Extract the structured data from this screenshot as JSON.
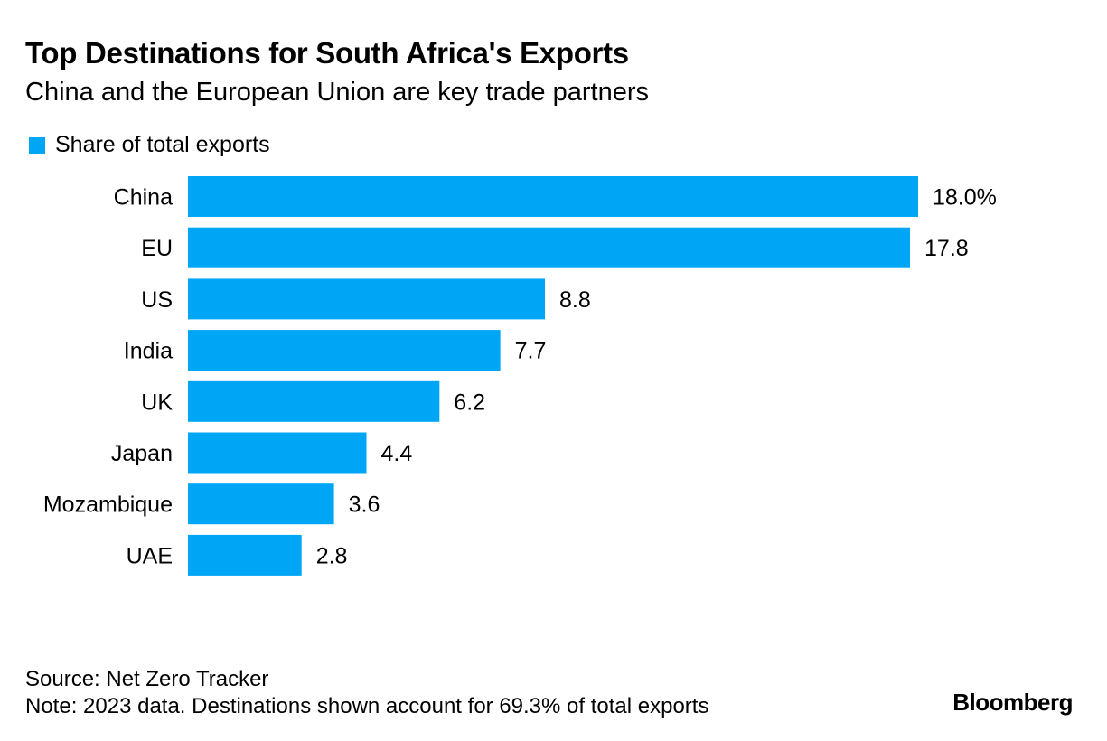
{
  "header": {
    "title": "Top Destinations for South Africa's Exports",
    "subtitle": "China and the European Union are key trade partners"
  },
  "legend": {
    "label": "Share of total exports",
    "color": "#00A6F6"
  },
  "chart_data": {
    "type": "bar",
    "orientation": "horizontal",
    "title": "Top Destinations for South Africa's Exports",
    "subtitle": "China and the European Union are key trade partners",
    "xlabel": "",
    "ylabel": "",
    "categories": [
      "China",
      "EU",
      "US",
      "India",
      "UK",
      "Japan",
      "Mozambique",
      "UAE"
    ],
    "series": [
      {
        "name": "Share of total exports",
        "values": [
          18.0,
          17.8,
          8.8,
          7.7,
          6.2,
          4.4,
          3.6,
          2.8
        ]
      }
    ],
    "data_labels": [
      "18.0%",
      "17.8",
      "8.8",
      "7.7",
      "6.2",
      "4.4",
      "3.6",
      "2.8"
    ],
    "xlim": [
      0,
      18.0
    ],
    "grid": false,
    "legend_position": "top-left",
    "bar_color": "#00A6F6"
  },
  "footer": {
    "source": "Source: Net Zero Tracker",
    "note": "Note: 2023 data. Destinations shown account for 69.3% of total exports"
  },
  "brand": "Bloomberg"
}
